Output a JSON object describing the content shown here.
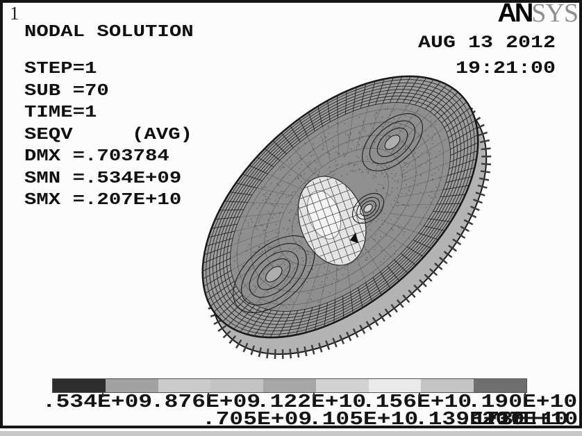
{
  "header": {
    "plot_number": "1",
    "logo_an": "AN",
    "logo_sys": "SYS",
    "date": "AUG 13 2012",
    "time": "19:21:00"
  },
  "info": {
    "title": "NODAL SOLUTION",
    "step": "STEP=1",
    "sub": "SUB =70",
    "time": "TIME=1",
    "seqv": "SEQV",
    "avg": "(AVG)",
    "dmx": "DMX =.703784",
    "smn": "SMN =.534E+09",
    "smx": "SMX =.207E+10"
  },
  "legend": {
    "row1": [
      ".534E+09",
      ".876E+09",
      ".122E+10",
      ".156E+10",
      ".190E+10"
    ],
    "row2": [
      ".705E+09",
      ".105E+10",
      ".139E+10",
      ".173E+10",
      ".207E+10"
    ],
    "segment_colors": [
      "#2d2d2d",
      "#a2a2a2",
      "#cbcbcb",
      "#c3c3c3",
      "#a7a7a7",
      "#d2d2d2",
      "#eaeaea",
      "#c5c5c5",
      "#6f6f6f"
    ]
  },
  "model": {
    "outer_fill": "#9c9c9c",
    "mid_fill": "#8f8f8f",
    "rim_fill": "#b3b3b3",
    "rim_tick": "#3c3c3c",
    "mesh_line": "#232323",
    "swirl_fill": "#aeaeae",
    "blob_fill": "#e4e4e4",
    "blob_core": "#f4f4f4",
    "speckle": "#474747",
    "edge": "#101010"
  }
}
